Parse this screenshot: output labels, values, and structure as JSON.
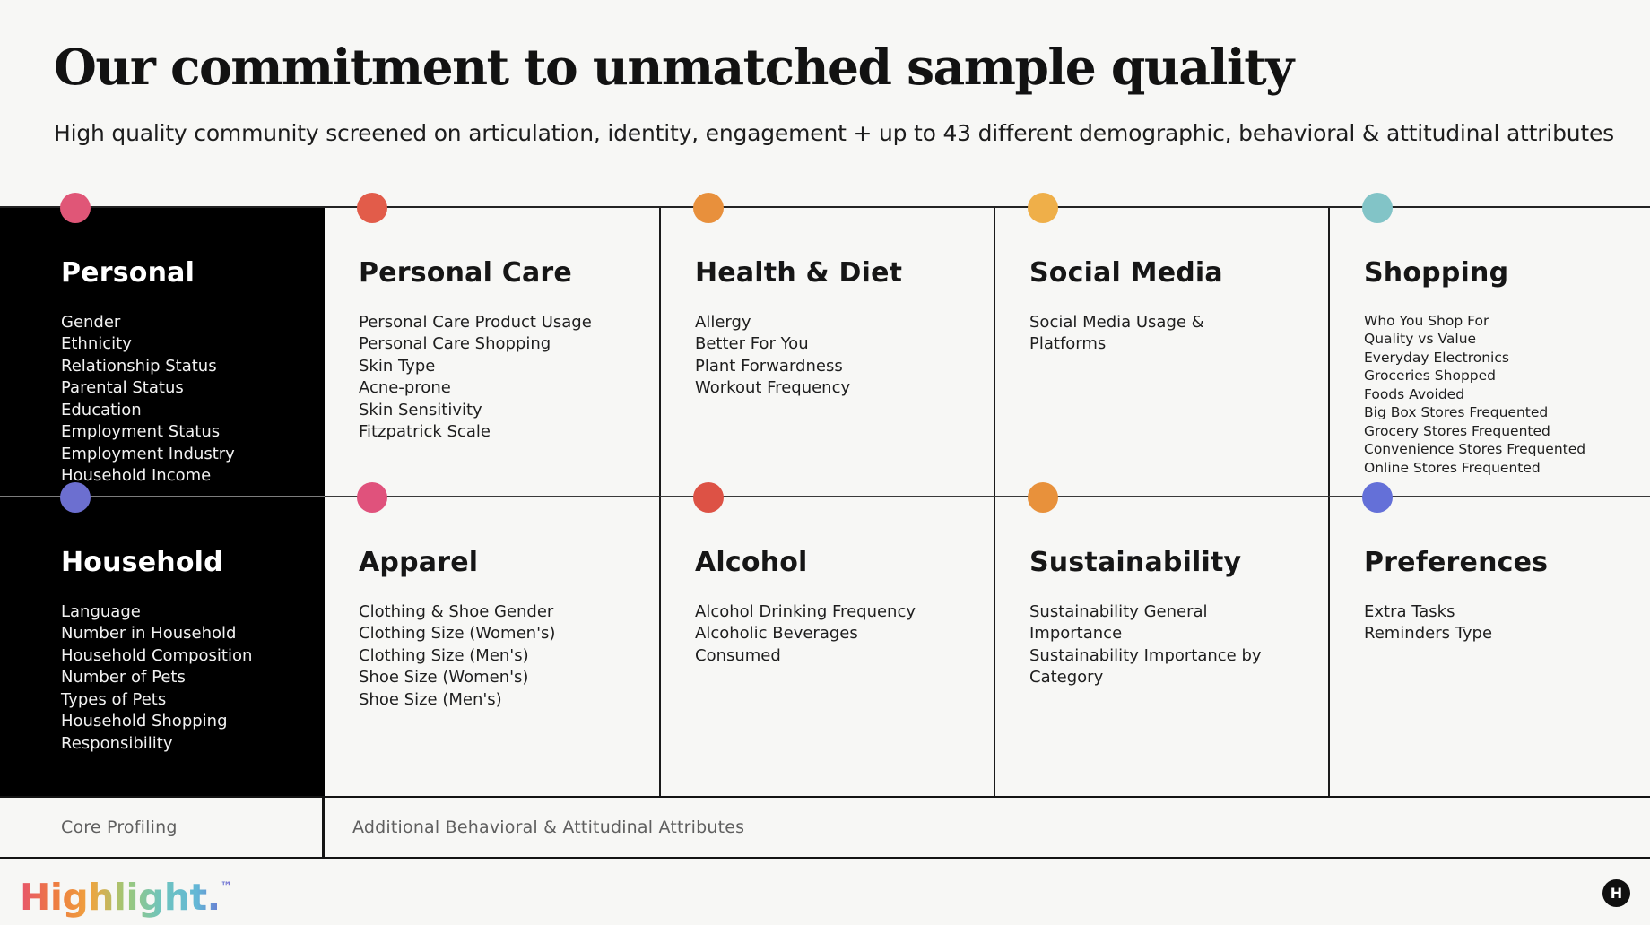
{
  "header": {
    "title": "Our commitment to unmatched sample quality",
    "subtitle": "High quality community screened on articulation, identity, engagement + up to 43 different demographic, behavioral & attitudinal attributes"
  },
  "cards": [
    {
      "title": "Personal",
      "dot_color": "#E05677",
      "variant": "black",
      "items": [
        "Gender",
        "Ethnicity",
        "Relationship Status",
        "Parental Status",
        "Education",
        "Employment Status",
        "Employment Industry",
        "Household Income"
      ]
    },
    {
      "title": "Personal Care",
      "dot_color": "#E25C4A",
      "variant": "light",
      "items": [
        "Personal Care Product Usage",
        "Personal Care Shopping",
        "Skin Type",
        "Acne-prone",
        "Skin Sensitivity",
        "Fitzpatrick Scale"
      ]
    },
    {
      "title": "Health & Diet",
      "dot_color": "#E8903C",
      "variant": "light",
      "items": [
        "Allergy",
        "Better For You",
        "Plant Forwardness",
        "Workout Frequency"
      ]
    },
    {
      "title": "Social Media",
      "dot_color": "#EFAF49",
      "variant": "light",
      "items": [
        "Social Media Usage &\nPlatforms"
      ]
    },
    {
      "title": "Shopping",
      "dot_color": "#82C4C7",
      "variant": "light small",
      "items": [
        "Who You Shop For",
        "Quality vs Value",
        "Everyday Electronics",
        "Groceries Shopped",
        "Foods Avoided",
        "Big Box Stores Frequented",
        "Grocery Stores Frequented",
        "Convenience Stores Frequented",
        "Online Stores Frequented"
      ]
    },
    {
      "title": "Household",
      "dot_color": "#6C6FD0",
      "variant": "black",
      "items": [
        "Language",
        "Number in Household",
        "Household Composition",
        "Number of Pets",
        "Types of Pets",
        "Household Shopping\nResponsibility"
      ]
    },
    {
      "title": "Apparel",
      "dot_color": "#E0527C",
      "variant": "light",
      "items": [
        "Clothing & Shoe Gender",
        "Clothing Size (Women's)",
        "Clothing Size (Men's)",
        "Shoe Size (Women's)",
        "Shoe Size (Men's)"
      ]
    },
    {
      "title": "Alcohol",
      "dot_color": "#DD5245",
      "variant": "light",
      "items": [
        "Alcohol Drinking Frequency",
        "Alcoholic Beverages\nConsumed"
      ]
    },
    {
      "title": "Sustainability",
      "dot_color": "#E8913B",
      "variant": "light",
      "items": [
        "Sustainability General\nImportance",
        "Sustainability Importance by\nCategory"
      ]
    },
    {
      "title": "Preferences",
      "dot_color": "#6470D8",
      "variant": "light",
      "items": [
        "Extra Tasks",
        "Reminders Type"
      ]
    }
  ],
  "footer": {
    "left_label": "Core Profiling",
    "right_label": "Additional Behavioral & Attitudinal Attributes"
  },
  "brand": {
    "wordmark": "Highlight.",
    "trademark": "™",
    "badge_letter": "H",
    "gradient": [
      "#E7556C",
      "#EE7C40",
      "#EFA43F",
      "#9DC878",
      "#6FC4BE",
      "#63B7D6",
      "#6C5FD0"
    ]
  }
}
